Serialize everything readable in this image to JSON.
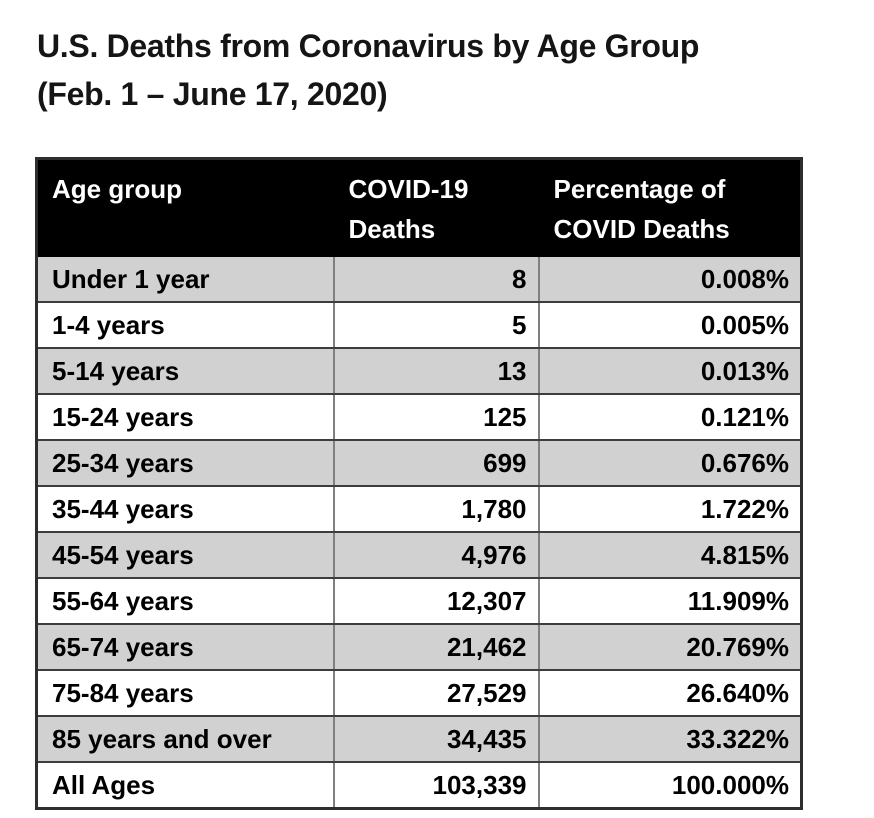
{
  "page": {
    "title_line1": "U.S. Deaths from Coronavirus by Age Group",
    "title_line2": "(Feb. 1 – June 17, 2020)"
  },
  "table": {
    "headers": {
      "age_group": "Age group",
      "deaths": "COVID-19 Deaths",
      "percentage": "Percentage of COVID Deaths"
    },
    "rows": [
      {
        "age": "Under 1 year",
        "deaths": "8",
        "pct": "0.008%"
      },
      {
        "age": "1-4 years",
        "deaths": "5",
        "pct": "0.005%"
      },
      {
        "age": "5-14 years",
        "deaths": "13",
        "pct": "0.013%"
      },
      {
        "age": "15-24 years",
        "deaths": "125",
        "pct": "0.121%"
      },
      {
        "age": "25-34 years",
        "deaths": "699",
        "pct": "0.676%"
      },
      {
        "age": "35-44 years",
        "deaths": "1,780",
        "pct": "1.722%"
      },
      {
        "age": "45-54 years",
        "deaths": "4,976",
        "pct": "4.815%"
      },
      {
        "age": "55-64 years",
        "deaths": "12,307",
        "pct": "11.909%"
      },
      {
        "age": "65-74 years",
        "deaths": "21,462",
        "pct": "20.769%"
      },
      {
        "age": "75-84 years",
        "deaths": "27,529",
        "pct": "26.640%"
      },
      {
        "age": "85 years and over",
        "deaths": "34,435",
        "pct": "33.322%"
      },
      {
        "age": "All Ages",
        "deaths": "103,339",
        "pct": "100.000%"
      }
    ]
  },
  "colors": {
    "header_bg": "#000000",
    "header_text": "#ffffff",
    "row_alt_bg": "#d1d1d1",
    "row_bg": "#ffffff",
    "border_horizontal": "#3d3d3d",
    "border_vertical": "#808080",
    "text": "#000000"
  },
  "chart_data": {
    "type": "table",
    "title": "U.S. Deaths from Coronavirus by Age Group (Feb. 1 – June 17, 2020)",
    "columns": [
      "Age group",
      "COVID-19 Deaths",
      "Percentage of COVID Deaths"
    ],
    "rows": [
      [
        "Under 1 year",
        8,
        "0.008%"
      ],
      [
        "1-4 years",
        5,
        "0.005%"
      ],
      [
        "5-14 years",
        13,
        "0.013%"
      ],
      [
        "15-24 years",
        125,
        "0.121%"
      ],
      [
        "25-34 years",
        699,
        "0.676%"
      ],
      [
        "35-44 years",
        1780,
        "1.722%"
      ],
      [
        "45-54 years",
        4976,
        "4.815%"
      ],
      [
        "55-64 years",
        12307,
        "11.909%"
      ],
      [
        "65-74 years",
        21462,
        "20.769%"
      ],
      [
        "75-84 years",
        27529,
        "26.640%"
      ],
      [
        "85 years and over",
        34435,
        "33.322%"
      ],
      [
        "All Ages",
        103339,
        "100.000%"
      ]
    ]
  }
}
